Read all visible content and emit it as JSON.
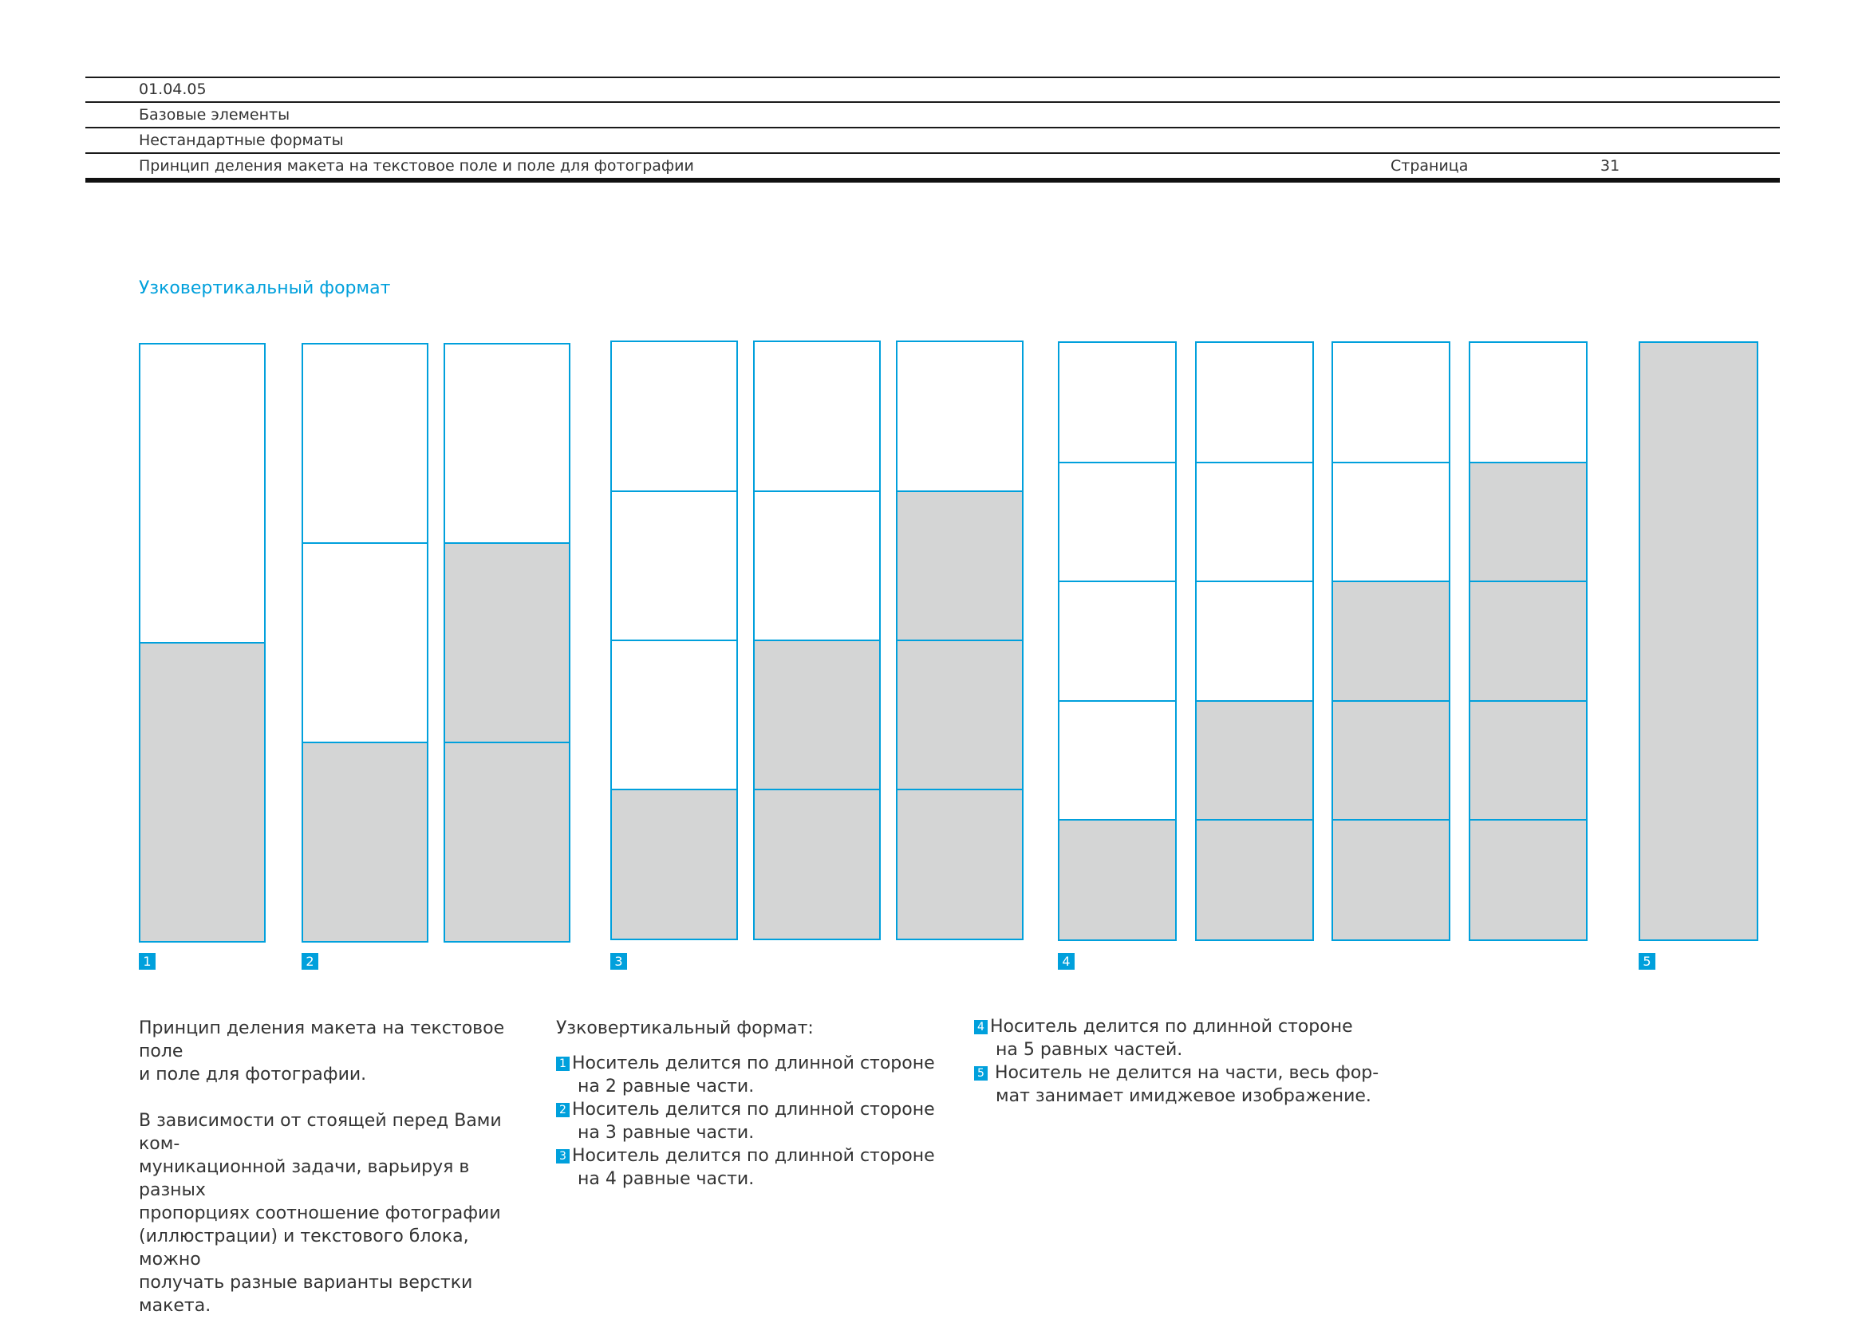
{
  "header": {
    "code": "01.04.05",
    "section": "Базовые элементы",
    "subsection": "Нестандартные форматы",
    "title": "Принцип деления макета на текстовое поле и поле для фотографии",
    "page_label": "Страница",
    "page_number": "31"
  },
  "section_title": "Узковертикальный формат",
  "colors": {
    "accent": "#00a0dc",
    "photo": "#d4d5d5",
    "text": "#333333"
  },
  "groups": [
    {
      "badge": "1",
      "parts": 2,
      "variants": [
        {
          "photo_parts": 1
        }
      ]
    },
    {
      "badge": "2",
      "parts": 3,
      "variants": [
        {
          "photo_parts": 1
        },
        {
          "photo_parts": 2
        }
      ]
    },
    {
      "badge": "3",
      "parts": 4,
      "variants": [
        {
          "photo_parts": 1
        },
        {
          "photo_parts": 2
        },
        {
          "photo_parts": 3
        }
      ]
    },
    {
      "badge": "4",
      "parts": 5,
      "variants": [
        {
          "photo_parts": 1
        },
        {
          "photo_parts": 2
        },
        {
          "photo_parts": 3
        },
        {
          "photo_parts": 4
        }
      ]
    },
    {
      "badge": "5",
      "parts": 1,
      "variants": [
        {
          "photo_parts": 1
        }
      ]
    }
  ],
  "intro": {
    "paragraph1": [
      "Принцип деления макета на текстовое поле",
      "и поле для фотографии."
    ],
    "paragraph2": [
      "В зависимости от стоящей перед Вами ком-",
      "муникационной задачи, варьируя в разных",
      "пропорциях соотношение фотографии",
      "(иллюстрации) и текстового блока, можно",
      "получать разные варианты верстки макета."
    ]
  },
  "list_title": "Узковертикальный формат:",
  "list_items": [
    {
      "badge": "1",
      "line1": "Носитель делится по длинной стороне",
      "line2": "на 2 равные части."
    },
    {
      "badge": "2",
      "line1": "Носитель делится по длинной стороне",
      "line2": "на 3 равные части."
    },
    {
      "badge": "3",
      "line1": "Носитель делится по длинной стороне",
      "line2": "на 4 равные части."
    },
    {
      "badge": "4",
      "line1": "Носитель делится по длинной стороне",
      "line2": "на 5 равных частей."
    },
    {
      "badge": "5",
      "line1": "Носитель не делится на части, весь фор-",
      "line2": "мат занимает имиджевое изображение."
    }
  ]
}
